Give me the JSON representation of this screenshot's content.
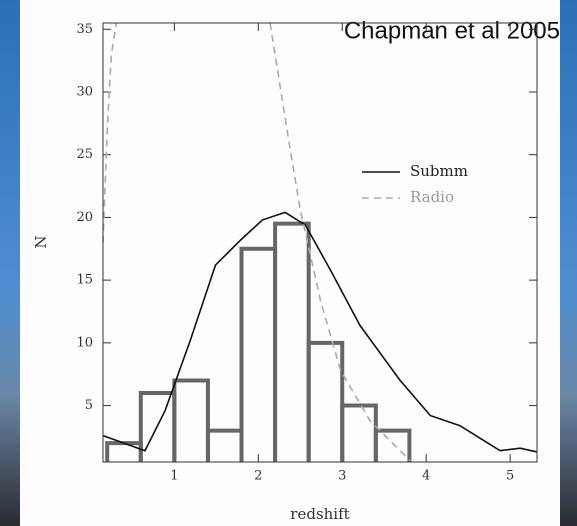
{
  "chart_data": {
    "type": "histogram",
    "annotation": "Chapman et al 2005",
    "x_label": "redshift",
    "y_label": "N",
    "bins": [
      0.2,
      0.6,
      1.0,
      1.4,
      1.8,
      2.2,
      2.6,
      3.0,
      3.4,
      3.8
    ],
    "values": [
      2,
      6,
      7,
      3,
      17.5,
      19.5,
      10,
      5,
      3
    ],
    "color": "#666666",
    "series": [
      {
        "name": "Submm",
        "color": "#111111",
        "dash": false,
        "x": [
          0.15,
          0.65,
          0.89,
          1.19,
          1.49,
          1.79,
          2.05,
          2.32,
          2.56,
          2.86,
          3.21,
          3.69,
          4.05,
          4.4,
          4.88,
          5.12,
          5.32
        ],
        "values": [
          2.6,
          1.4,
          4.6,
          10.2,
          16.2,
          18.2,
          19.8,
          20.4,
          19.4,
          15.8,
          11.4,
          7,
          4.2,
          3.4,
          1.4,
          1.6,
          1.3
        ]
      },
      {
        "name": "Radio",
        "color": "#aaaaaa",
        "dash": true,
        "x": [
          0.15,
          0.2,
          0.25,
          0.31,
          1.2,
          2.14,
          2.38,
          2.5,
          2.74,
          2.98,
          3.33,
          3.81
        ],
        "values": [
          18,
          27,
          33,
          35.5,
          null,
          35.5,
          25.4,
          20.6,
          13.4,
          7.8,
          3.8,
          0.6
        ]
      }
    ],
    "xlim": [
      0.15,
      5.32
    ],
    "ylim": [
      0.5,
      35.5
    ],
    "xticks": [
      1,
      2,
      3,
      4,
      5
    ],
    "yticks": [
      5,
      10,
      15,
      20,
      25,
      30,
      35
    ]
  }
}
